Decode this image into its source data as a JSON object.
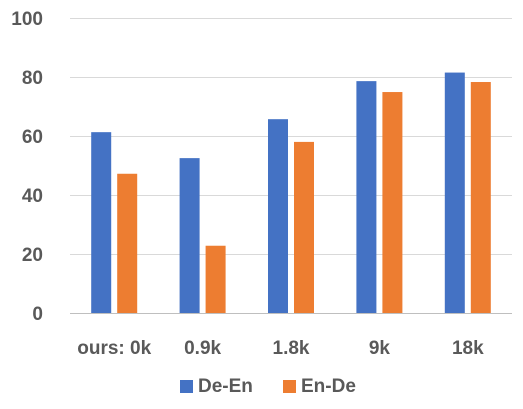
{
  "chart_data": {
    "type": "bar",
    "categories": [
      "ours: 0k",
      "0.9k",
      "1.8k",
      "9k",
      "18k"
    ],
    "series": [
      {
        "name": "De-En",
        "values": [
          61.3,
          52.5,
          65.7,
          78.6,
          81.5
        ],
        "color": "#4472C4"
      },
      {
        "name": "En-De",
        "values": [
          47.2,
          22.8,
          58.0,
          74.9,
          78.3
        ],
        "color": "#ED7D31"
      }
    ],
    "ylim": [
      0,
      100
    ],
    "yticks": [
      0,
      20,
      40,
      60,
      80,
      100
    ],
    "grid": true,
    "legend_position": "bottom",
    "title": "",
    "xlabel": "",
    "ylabel": ""
  }
}
